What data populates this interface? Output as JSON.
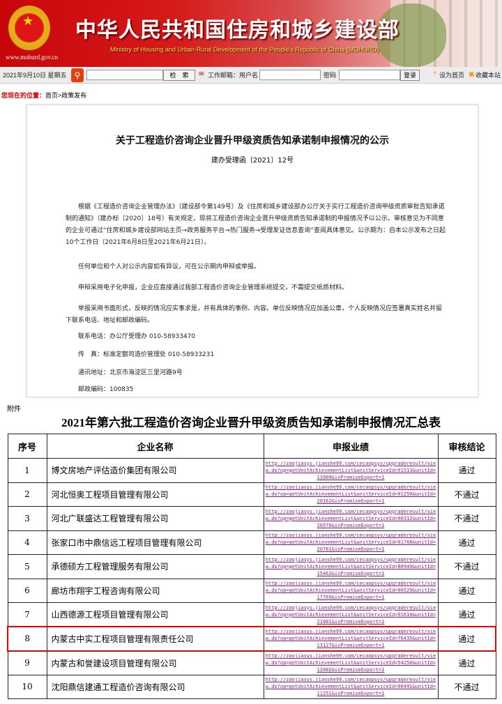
{
  "header": {
    "title_cn": "中华人民共和国住房和城乡建设部",
    "title_en": "Ministry of Housing and Urban-Rural Development of the People's Republic of China (MOHURD)",
    "url": "www.mohurd.gov.cn"
  },
  "toolbar": {
    "date": "2021年9月10日 星期五",
    "search_button": "检　索",
    "mail_label": "工作邮箱：用户名",
    "password_label": "密码",
    "login_button": "登录",
    "set_home": "设为首页",
    "bookmark": "收藏本站"
  },
  "breadcrumb": {
    "label": "您现在的位置：",
    "path": "首页>政策发布"
  },
  "doc": {
    "title": "关于工程造价咨询企业晋升甲级资质告知承诺制申报情况的公示",
    "number": "建办受理函〔2021〕12号",
    "paragraphs": [
      "　　根据《工程造价咨询企业管理办法》（建设部令第149号）及《住房和城乡建设部办公厅关于实行工程造价咨询甲级资质审批告知承诺制的通知》（建办标〔2020〕18号）有关规定，现将工程造价咨询企业晋升甲级资质告知承诺制的申报情况予以公示。审核意见为不同意的企业可通过“住房和城乡建设部网站主页→政务服务平台→热门服务→受理发证信息查询”查阅具体意见。公示期为：自本公示发布之日起10个工作日（2021年6月8日至2021年6月21日）。",
      "　　任何单位和个人对公示内容如有异议，可在公示期内申辩或举报。",
      "　　申辩采用电子化申报，企业应直接通过我部工程造价咨询企业管理系统提交，不需提交纸质材料。",
      "　　举报采用书面形式，反映的情况应实事求是，并有具体的事例、内容。单位反映情况应加盖公章，个人反映情况应签署真实姓名并留下联系电话、地址和邮政编码。",
      "　　联系电话：办公厅受理办 010-58933470",
      "　　传　真：标准定额司造价管理处 010-58933231",
      "　　通讯地址：北京市海淀区三里河路9号",
      "　　邮政编码：100835"
    ]
  },
  "attachment_label": "附件",
  "table": {
    "title": "2021年第六批工程造价咨询企业晋升甲级资质告知承诺制申报情况汇总表",
    "headers": [
      "序号",
      "企业名称",
      "申报业绩",
      "审核结论"
    ],
    "rows": [
      {
        "no": "1",
        "company": "博文房地产评估造价集团有限公司",
        "link": "http://zaojiasys.jianshe99.com/cecaopsys/upgraderesult/view.do?op=getUnitAchievementList&unitServiceId=91513&unitId=13909&isPromiseExport=1",
        "result": "通过"
      },
      {
        "no": "2",
        "company": "河北恒奥工程项目管理有限公司",
        "link": "http://zaojiasys.jianshe99.com/cecaopsys/upgraderesult/view.do?op=getUnitAchievementList&unitServiceId=91250&unitId=20162&isPromiseExport=1",
        "result": "不通过"
      },
      {
        "no": "3",
        "company": "河北广联盛达工程管理有限公司",
        "link": "http://zaojiasys.jianshe99.com/cecaopsys/upgraderesult/view.do?op=getUnitAchievementList&unitServiceId=90312&unitId=20576&isPromiseExport=1",
        "result": "不通过"
      },
      {
        "no": "4",
        "company": "张家口市中鼎信远工程项目管理有限公司",
        "link": "http://zaojiasys.jianshe99.com/cecaopsys/upgraderesult/view.do?op=getUnitAchievementList&unitServiceId=91768&unitId=20761&isPromiseExport=1",
        "result": "通过"
      },
      {
        "no": "5",
        "company": "承德硕方工程管理服务有限公司",
        "link": "http://zaojiasys.jianshe99.com/cecaopsys/upgraderesult/view.do?op=getUnitAchievementList&unitServiceId=88949&unitId=15462&isPromiseExport=1",
        "result": "不通过"
      },
      {
        "no": "6",
        "company": "廊坊市翔宇工程咨询有限公司",
        "link": "http://zaojiasys.jianshe99.com/cecaopsys/upgraderesult/view.do?op=getUnitAchievementList&unitServiceId=90529&unitId=17769&isPromiseExport=1",
        "result": "通过"
      },
      {
        "no": "7",
        "company": "山西德源工程项目管理有限公司",
        "link": "http://zaojiasys.jianshe99.com/cecaopsys/upgraderesult/view.do?op=getUnitAchievementList&unitServiceId=91610&unitId=21001&isPromiseExport=1",
        "result": "通过"
      },
      {
        "no": "8",
        "company": "内蒙古中实工程项目管理有限责任公司",
        "link": "http://zaojiasys.jianshe99.com/cecaopsys/upgraderesult/view.do?op=getUnitAchievementList&unitServiceId=76435&unitId=13127&isPromiseExport=1",
        "result": "通过",
        "highlighted": true
      },
      {
        "no": "9",
        "company": "内蒙古和誉建设项目管理有限公司",
        "link": "http://zaojiasys.jianshe99.com/cecaopsys/upgraderesult/view.do?op=getUnitAchievementList&unitServiceId=54250&unitId=12002&isPromiseExport=1",
        "result": "通过"
      },
      {
        "no": "10",
        "company": "沈阳鼎信建通工程造价咨询有限公司",
        "link": "http://zaojiasys.jianshe99.com/cecaopsys/upgraderesult/view.do?op=getUnitAchievementList&unitServiceId=90491&unitId=11251&isPromiseExport=1",
        "result": "不通过"
      }
    ]
  },
  "colors": {
    "brand_red": "#c8060a",
    "highlight": "#e00000",
    "link": "#8a1a8a"
  }
}
